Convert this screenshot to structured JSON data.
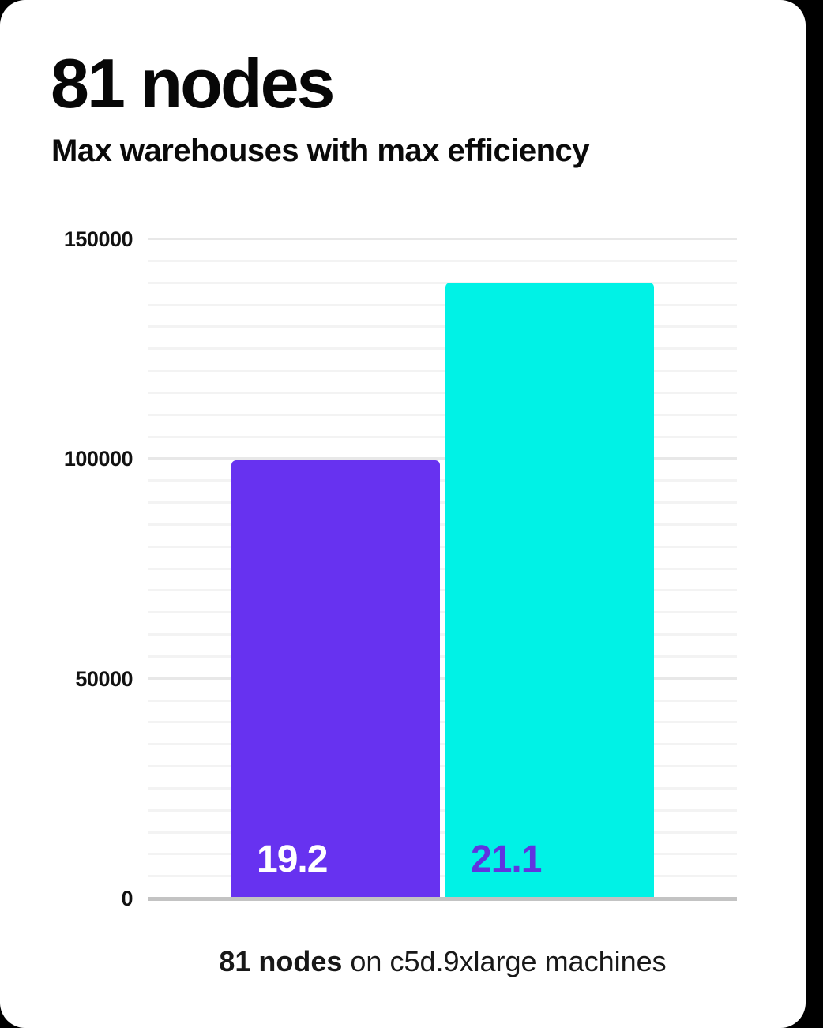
{
  "page": {
    "background_color": "#000000",
    "card_background_color": "#ffffff"
  },
  "header": {
    "title": "81 nodes",
    "subtitle": "Max warehouses with max efficiency"
  },
  "chart_data": {
    "type": "bar",
    "title": "81 nodes",
    "subtitle": "Max warehouses with max efficiency",
    "xlabel": "",
    "ylabel": "",
    "ylim": [
      0,
      150000
    ],
    "yticks": [
      0,
      50000,
      100000,
      150000
    ],
    "minor_gridline_step": 5000,
    "grid": true,
    "legend": false,
    "bars": [
      {
        "label": "19.2",
        "value": 99700,
        "color": "#6732f0",
        "label_color": "#ffffff"
      },
      {
        "label": "21.1",
        "value": 140100,
        "color": "#00f2e6",
        "label_color": "#6034e0"
      }
    ],
    "colors": {
      "minor_gridline": "#f3f3f3",
      "major_gridline": "#e8e8e8",
      "baseline": "#c3c3c3"
    }
  },
  "caption": {
    "bold": "81 nodes",
    "rest": " on c5d.9xlarge machines"
  }
}
